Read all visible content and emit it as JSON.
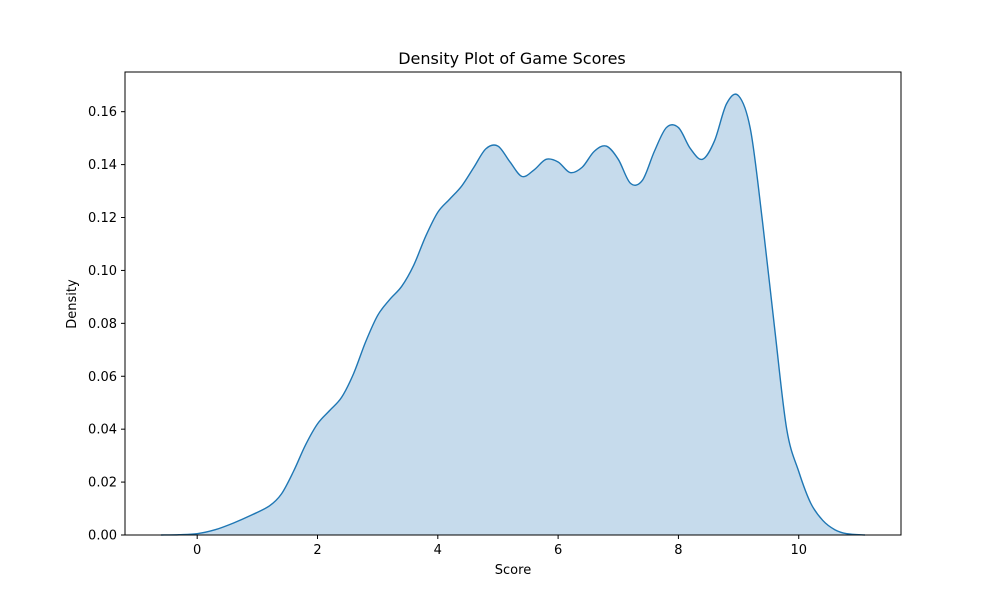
{
  "chart_data": {
    "type": "area",
    "title": "Density Plot of Game Scores",
    "xlabel": "Score",
    "ylabel": "Density",
    "xlim": [
      -1.2,
      11.7
    ],
    "ylim": [
      0,
      0.175
    ],
    "xticks": [
      0,
      2,
      4,
      6,
      8,
      10
    ],
    "yticks": [
      0.0,
      0.02,
      0.04,
      0.06,
      0.08,
      0.1,
      0.12,
      0.14,
      0.16
    ],
    "ytick_labels": [
      "0.00",
      "0.02",
      "0.04",
      "0.06",
      "0.08",
      "0.10",
      "0.12",
      "0.14",
      "0.16"
    ],
    "xtick_labels": [
      "0",
      "2",
      "4",
      "6",
      "8",
      "10"
    ],
    "grid": false,
    "line_color": "#1f77b4",
    "fill_color": "#c6dbec",
    "series": [
      {
        "x": [
          -0.6,
          -0.3,
          0.0,
          0.3,
          0.6,
          0.9,
          1.2,
          1.4,
          1.6,
          1.8,
          2.0,
          2.2,
          2.4,
          2.6,
          2.8,
          3.0,
          3.2,
          3.4,
          3.6,
          3.8,
          4.0,
          4.2,
          4.4,
          4.6,
          4.8,
          5.0,
          5.2,
          5.4,
          5.6,
          5.8,
          6.0,
          6.2,
          6.4,
          6.6,
          6.8,
          7.0,
          7.2,
          7.4,
          7.6,
          7.8,
          8.0,
          8.2,
          8.4,
          8.6,
          8.8,
          9.0,
          9.2,
          9.4,
          9.6,
          9.8,
          10.0,
          10.2,
          10.4,
          10.6,
          10.8,
          11.1
        ],
        "y": [
          0.0,
          0.0001,
          0.0005,
          0.002,
          0.0045,
          0.0075,
          0.011,
          0.0155,
          0.024,
          0.034,
          0.042,
          0.047,
          0.052,
          0.061,
          0.073,
          0.083,
          0.089,
          0.094,
          0.102,
          0.113,
          0.122,
          0.127,
          0.132,
          0.139,
          0.146,
          0.147,
          0.141,
          0.1355,
          0.138,
          0.142,
          0.141,
          0.137,
          0.139,
          0.145,
          0.147,
          0.142,
          0.133,
          0.134,
          0.145,
          0.154,
          0.154,
          0.146,
          0.142,
          0.149,
          0.163,
          0.166,
          0.153,
          0.118,
          0.078,
          0.04,
          0.024,
          0.012,
          0.0055,
          0.002,
          0.0005,
          0.0
        ]
      }
    ]
  }
}
